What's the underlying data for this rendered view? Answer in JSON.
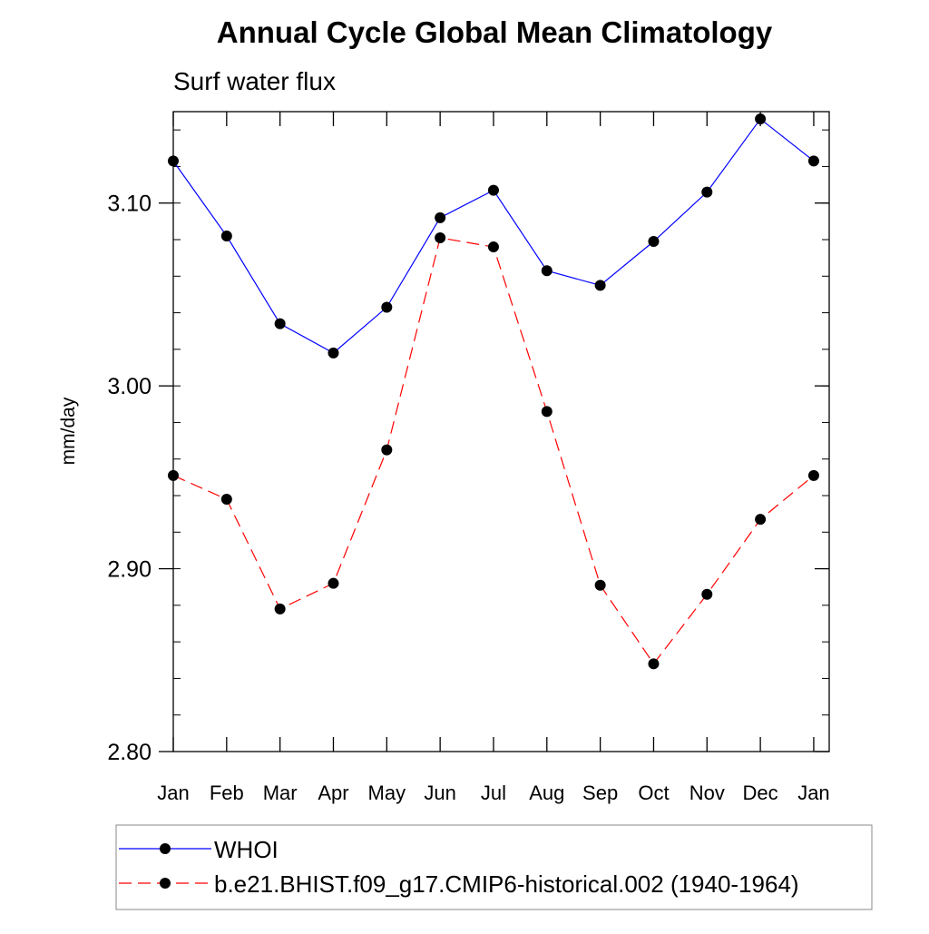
{
  "chart_data": {
    "type": "line",
    "title": "Annual Cycle Global Mean Climatology",
    "subtitle": "Surf water flux",
    "xlabel": "",
    "ylabel": "mm/day",
    "categories": [
      "Jan",
      "Feb",
      "Mar",
      "Apr",
      "May",
      "Jun",
      "Jul",
      "Aug",
      "Sep",
      "Oct",
      "Nov",
      "Dec",
      "Jan"
    ],
    "xlim": [
      0,
      12.29
    ],
    "ylim": [
      2.8,
      3.15
    ],
    "yticks": [
      2.8,
      2.9,
      3.0,
      3.1
    ],
    "ytick_labels": [
      "2.80",
      "2.90",
      "3.00",
      "3.10"
    ],
    "y_minor_step": 0.02,
    "grid": false,
    "legend_placement": "bottom",
    "series": [
      {
        "name": "WHOI",
        "color": "#0000ff",
        "dash": "solid",
        "values": [
          3.123,
          3.082,
          3.034,
          3.018,
          3.043,
          3.092,
          3.107,
          3.063,
          3.055,
          3.079,
          3.106,
          3.146,
          3.123
        ]
      },
      {
        "name": "b.e21.BHIST.f09_g17.CMIP6-historical.002 (1940-1964)",
        "color": "#ff0000",
        "dash": "dashed",
        "values": [
          2.951,
          2.938,
          2.878,
          2.892,
          2.965,
          3.081,
          3.076,
          2.986,
          2.891,
          2.848,
          2.886,
          2.927,
          2.951
        ]
      }
    ]
  }
}
